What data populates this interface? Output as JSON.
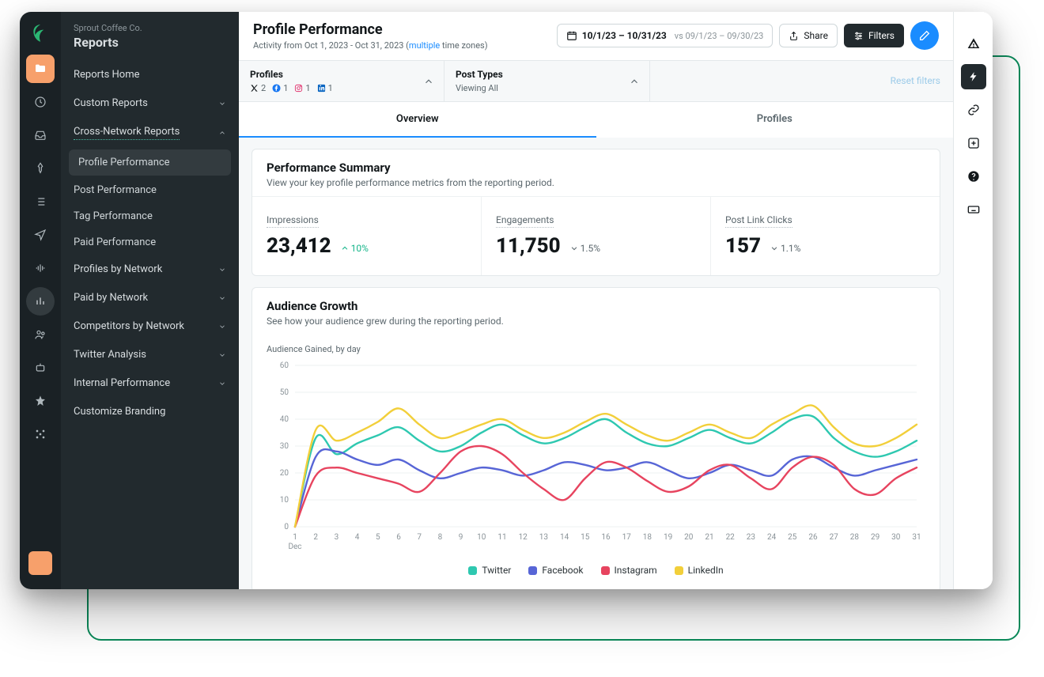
{
  "brand": {
    "company": "Sprout Coffee Co.",
    "section": "Reports"
  },
  "nav": {
    "home": "Reports Home",
    "custom": "Custom Reports",
    "cross": "Cross-Network Reports",
    "sub": {
      "profile": "Profile Performance",
      "post": "Post Performance",
      "tag": "Tag Performance",
      "paid": "Paid Performance"
    },
    "profiles_by": "Profiles by Network",
    "paid_by": "Paid by Network",
    "competitors_by": "Competitors by Network",
    "twitter": "Twitter Analysis",
    "internal": "Internal Performance",
    "branding": "Customize Branding"
  },
  "header": {
    "title": "Profile Performance",
    "activity_prefix": "Activity from Oct 1, 2023 - Oct 31, 2023 (",
    "multiple": "multiple",
    "activity_suffix": " time zones)",
    "date_primary": "10/1/23 – 10/31/23",
    "date_compare": "vs 09/1/23 – 09/30/23",
    "share": "Share",
    "filters": "Filters"
  },
  "filterbar": {
    "profiles_label": "Profiles",
    "post_types_label": "Post Types",
    "viewing_all": "Viewing All",
    "reset": "Reset filters",
    "counts": {
      "x": "2",
      "fb": "1",
      "ig": "1",
      "li": "1"
    }
  },
  "tabs": {
    "overview": "Overview",
    "profiles": "Profiles"
  },
  "summary": {
    "title": "Performance Summary",
    "subtitle": "View your key profile performance metrics from the reporting period.",
    "metrics": [
      {
        "label": "Impressions",
        "value": "23,412",
        "delta": "10%",
        "dir": "up"
      },
      {
        "label": "Engagements",
        "value": "11,750",
        "delta": "1.5%",
        "dir": "down"
      },
      {
        "label": "Post Link Clicks",
        "value": "157",
        "delta": "1.1%",
        "dir": "down"
      }
    ]
  },
  "growth": {
    "title": "Audience Growth",
    "subtitle": "See how your audience grew during the reporting period.",
    "caption": "Audience Gained, by day",
    "month": "Dec",
    "chart": {
      "type": "line",
      "ylim": [
        0,
        60
      ],
      "ytick_step": 10,
      "x_labels": [
        "1",
        "2",
        "3",
        "4",
        "5",
        "6",
        "7",
        "8",
        "9",
        "10",
        "11",
        "12",
        "13",
        "14",
        "15",
        "16",
        "17",
        "18",
        "19",
        "20",
        "21",
        "22",
        "23",
        "24",
        "25",
        "26",
        "27",
        "28",
        "29",
        "30",
        "31"
      ],
      "grid_color": "#edf0f1",
      "axis_color": "#b7c0c4",
      "label_color": "#8a9398",
      "label_fontsize": 10,
      "line_width": 2.4,
      "background_color": "#ffffff",
      "series": [
        {
          "name": "Twitter",
          "color": "#2ec8b0",
          "values": [
            0,
            33,
            27,
            31,
            34,
            37,
            32,
            28,
            30,
            35,
            38,
            34,
            31,
            33,
            37,
            40,
            35,
            31,
            30,
            33,
            36,
            33,
            31,
            35,
            40,
            41,
            33,
            28,
            26,
            28,
            32
          ]
        },
        {
          "name": "Facebook",
          "color": "#5765d6",
          "values": [
            0,
            26,
            28,
            25,
            23,
            25,
            21,
            18,
            20,
            22,
            21,
            19,
            21,
            24,
            23,
            21,
            22,
            24,
            21,
            18,
            20,
            23,
            21,
            19,
            25,
            26,
            22,
            19,
            21,
            23,
            25
          ]
        },
        {
          "name": "Instagram",
          "color": "#e7445f",
          "values": [
            0,
            19,
            22,
            20,
            18,
            16,
            13,
            20,
            28,
            30,
            27,
            20,
            14,
            10,
            18,
            24,
            22,
            17,
            13,
            15,
            21,
            23,
            18,
            14,
            22,
            26,
            23,
            14,
            12,
            18,
            22
          ]
        },
        {
          "name": "LinkedIn",
          "color": "#f2cf3a",
          "values": [
            0,
            36,
            32,
            35,
            39,
            44,
            38,
            33,
            35,
            38,
            40,
            36,
            33,
            35,
            39,
            42,
            38,
            34,
            32,
            35,
            38,
            35,
            33,
            38,
            42,
            45,
            37,
            31,
            30,
            33,
            38
          ]
        }
      ]
    },
    "legend": {
      "twitter": "Twitter",
      "facebook": "Facebook",
      "instagram": "Instagram",
      "linkedin": "LinkedIn"
    }
  }
}
